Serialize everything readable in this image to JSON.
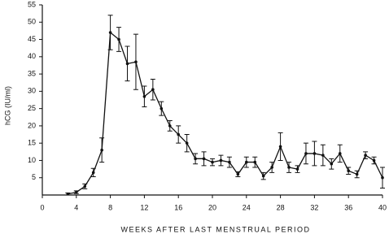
{
  "chart_data": {
    "type": "line",
    "x_label": "WEEKS AFTER LAST MENSTRUAL PERIOD",
    "y_label": "hCG (IU/ml)",
    "x": [
      3,
      4,
      5,
      6,
      7,
      8,
      9,
      10,
      11,
      12,
      13,
      14,
      15,
      16,
      17,
      18,
      19,
      20,
      21,
      22,
      23,
      24,
      25,
      26,
      27,
      28,
      29,
      30,
      31,
      32,
      33,
      34,
      35,
      36,
      37,
      38,
      39,
      40
    ],
    "series": [
      {
        "color": "#111111",
        "values": [
          0.3,
          0.8,
          2.5,
          6.5,
          13,
          47,
          45,
          38,
          38.5,
          28.5,
          30.5,
          25,
          20,
          17.5,
          15,
          10.5,
          10.5,
          9.5,
          10,
          9.5,
          6,
          9.5,
          9.5,
          5.5,
          8,
          14,
          8,
          7.5,
          12,
          12,
          11.5,
          9,
          12,
          7,
          6,
          11.5,
          10,
          5
        ],
        "errors": [
          0.3,
          0.4,
          0.7,
          1.2,
          3.5,
          5,
          3.5,
          5,
          8,
          3,
          3,
          2,
          1.5,
          2.5,
          2.5,
          1.5,
          2,
          1,
          1.5,
          1.5,
          0.7,
          1.5,
          1.5,
          1,
          1.5,
          4,
          1.5,
          1,
          3,
          3.5,
          3,
          1.5,
          2.5,
          1,
          1,
          1,
          1,
          3
        ]
      }
    ],
    "xlim": [
      0,
      40
    ],
    "xticks": [
      0,
      4,
      8,
      12,
      16,
      20,
      24,
      28,
      32,
      36,
      40
    ],
    "ylim": [
      0,
      55
    ],
    "yticks": [
      5,
      10,
      15,
      20,
      25,
      30,
      35,
      40,
      45,
      50,
      55
    ]
  }
}
